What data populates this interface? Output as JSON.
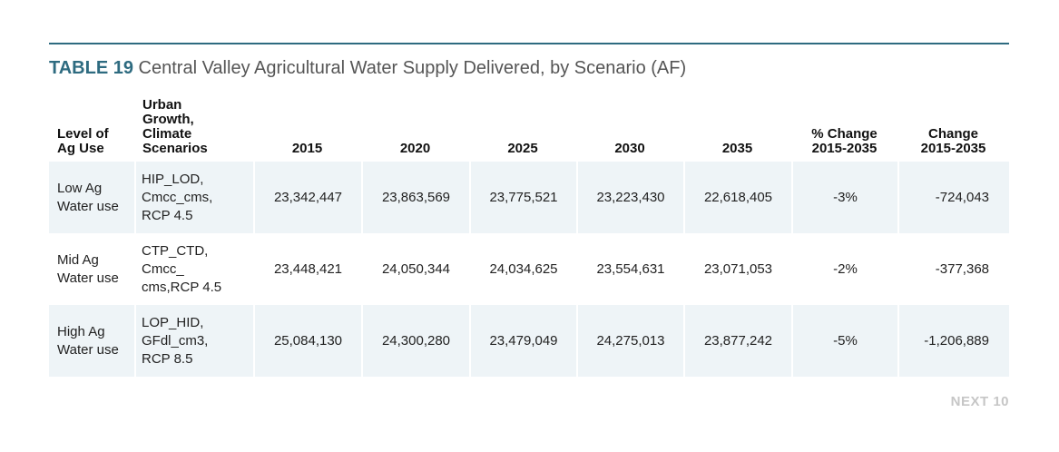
{
  "title": {
    "label": "TABLE 19",
    "text": "Central Valley Agricultural Water Supply Delivered, by Scenario (AF)"
  },
  "table": {
    "headers": [
      [
        "Level of",
        "Ag Use"
      ],
      [
        "Urban",
        "Growth,",
        "Climate",
        "Scenarios"
      ],
      [
        "2015"
      ],
      [
        "2020"
      ],
      [
        "2025"
      ],
      [
        "2030"
      ],
      [
        "2035"
      ],
      [
        "% Change",
        "2015-2035"
      ],
      [
        "Change",
        "2015-2035"
      ]
    ],
    "rows": [
      {
        "level": [
          "Low Ag",
          "Water use"
        ],
        "scenario": [
          "HIP_LOD,",
          "Cmcc_cms,",
          "RCP 4.5"
        ],
        "values": [
          "23,342,447",
          "23,863,569",
          "23,775,521",
          "23,223,430",
          "22,618,405"
        ],
        "pct_change": "-3%",
        "change": "-724,043"
      },
      {
        "level": [
          "Mid Ag",
          "Water use"
        ],
        "scenario": [
          "CTP_CTD,",
          "Cmcc_",
          "cms,RCP 4.5"
        ],
        "values": [
          "23,448,421",
          "24,050,344",
          "24,034,625",
          "23,554,631",
          "23,071,053"
        ],
        "pct_change": "-2%",
        "change": "-377,368"
      },
      {
        "level": [
          "High Ag",
          "Water use"
        ],
        "scenario": [
          "LOP_HID,",
          "GFdl_cm3,",
          "RCP 8.5"
        ],
        "values": [
          "25,084,130",
          "24,300,280",
          "23,479,049",
          "24,275,013",
          "23,877,242"
        ],
        "pct_change": "-5%",
        "change": "-1,206,889"
      }
    ]
  },
  "footer": "NEXT 10",
  "colors": {
    "accent": "#2e6b80",
    "row_shade": "#eef4f7",
    "footer": "#c6c6c6"
  }
}
